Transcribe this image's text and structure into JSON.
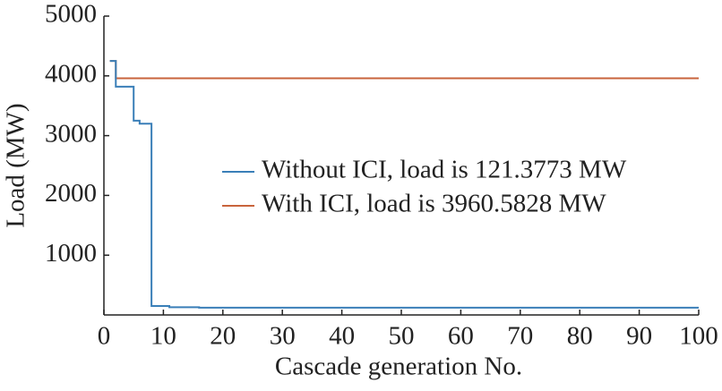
{
  "chart_data": {
    "type": "line",
    "x_label": "Cascade generation No.",
    "y_label": "Load (MW)",
    "xlim": [
      0,
      100
    ],
    "xticks": [
      0,
      10,
      20,
      30,
      40,
      50,
      60,
      70,
      80,
      90,
      100
    ],
    "ylim": [
      0,
      5000
    ],
    "yticks": [
      1000,
      2000,
      3000,
      4000,
      5000
    ],
    "legend": "center-right",
    "series": [
      {
        "name": "Without ICI, load is 121.3773 MW",
        "color": "#3a7fb8",
        "x": [
          1,
          2,
          2,
          5,
          5,
          6,
          6,
          8,
          8,
          11,
          11,
          16,
          16,
          100
        ],
        "values": [
          4250,
          4250,
          3820,
          3820,
          3250,
          3250,
          3200,
          3200,
          150,
          150,
          130,
          130,
          121,
          121
        ]
      },
      {
        "name": "With ICI, load is 3960.5828 MW",
        "color": "#c8643c",
        "x": [
          1,
          2,
          2,
          100
        ],
        "values": [
          4250,
          4250,
          3960,
          3960
        ]
      }
    ]
  }
}
